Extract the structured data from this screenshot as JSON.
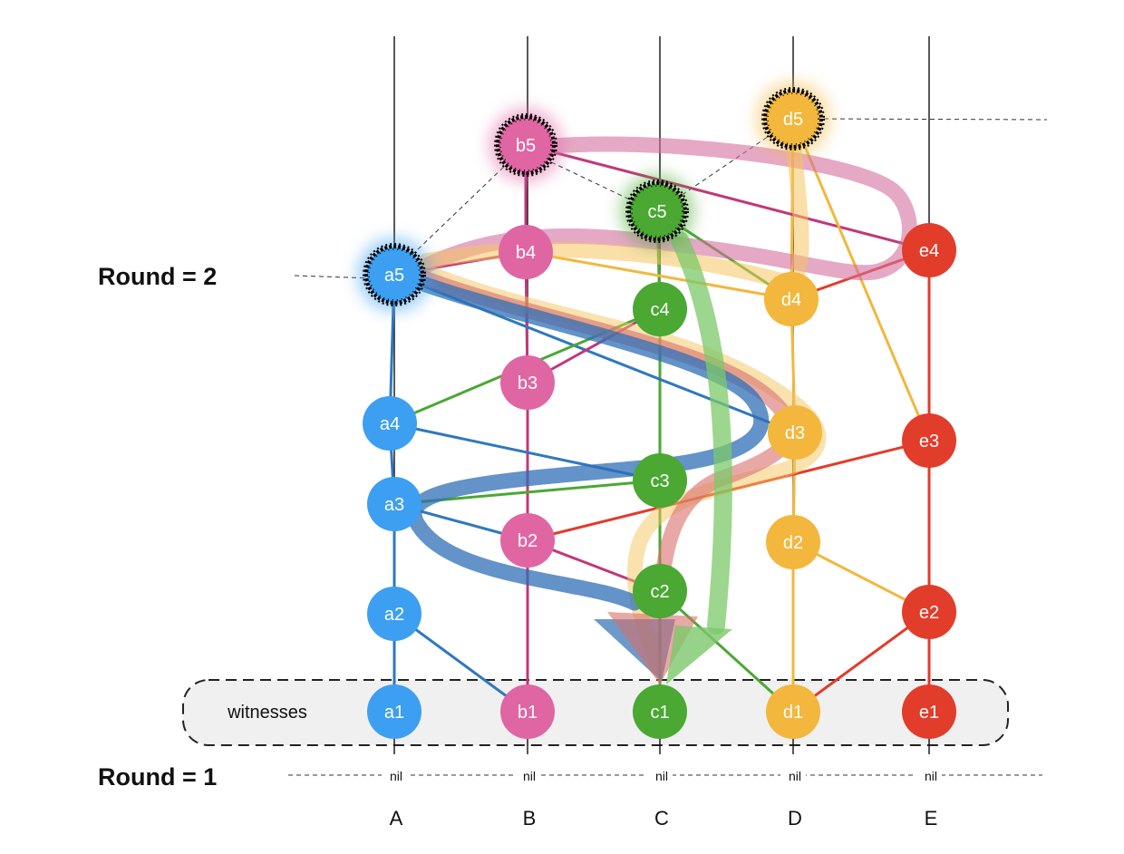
{
  "diagram": {
    "round_labels": {
      "top": "Round = 2",
      "bottom": "Round = 1"
    },
    "witnesses_label": "witnesses",
    "nil_label": "nil",
    "columns": [
      {
        "id": "A",
        "label": "A",
        "color": "#3d9ff1"
      },
      {
        "id": "B",
        "label": "B",
        "color": "#e066a3"
      },
      {
        "id": "C",
        "label": "C",
        "color": "#4aa833"
      },
      {
        "id": "D",
        "label": "D",
        "color": "#f2b73c"
      },
      {
        "id": "E",
        "label": "E",
        "color": "#e23c2b"
      }
    ],
    "nodes": [
      {
        "id": "a1",
        "label": "a1",
        "col": "A",
        "witness": true
      },
      {
        "id": "a2",
        "label": "a2",
        "col": "A"
      },
      {
        "id": "a3",
        "label": "a3",
        "col": "A"
      },
      {
        "id": "a4",
        "label": "a4",
        "col": "A"
      },
      {
        "id": "a5",
        "label": "a5",
        "col": "A",
        "famous": true
      },
      {
        "id": "b1",
        "label": "b1",
        "col": "B",
        "witness": true
      },
      {
        "id": "b2",
        "label": "b2",
        "col": "B"
      },
      {
        "id": "b3",
        "label": "b3",
        "col": "B"
      },
      {
        "id": "b4",
        "label": "b4",
        "col": "B"
      },
      {
        "id": "b5",
        "label": "b5",
        "col": "B",
        "famous": true
      },
      {
        "id": "c1",
        "label": "c1",
        "col": "C",
        "witness": true
      },
      {
        "id": "c2",
        "label": "c2",
        "col": "C"
      },
      {
        "id": "c3",
        "label": "c3",
        "col": "C"
      },
      {
        "id": "c4",
        "label": "c4",
        "col": "C"
      },
      {
        "id": "c5",
        "label": "c5",
        "col": "C",
        "famous": true
      },
      {
        "id": "d1",
        "label": "d1",
        "col": "D",
        "witness": true
      },
      {
        "id": "d2",
        "label": "d2",
        "col": "D"
      },
      {
        "id": "d3",
        "label": "d3",
        "col": "D"
      },
      {
        "id": "d4",
        "label": "d4",
        "col": "D"
      },
      {
        "id": "d5",
        "label": "d5",
        "col": "D",
        "famous": true
      },
      {
        "id": "e1",
        "label": "e1",
        "col": "E",
        "witness": true
      },
      {
        "id": "e2",
        "label": "e2",
        "col": "E"
      },
      {
        "id": "e3",
        "label": "e3",
        "col": "E"
      },
      {
        "id": "e4",
        "label": "e4",
        "col": "E"
      }
    ],
    "edges": [
      {
        "from": "a1",
        "to": "a2",
        "color": "#2f78c0"
      },
      {
        "from": "a2",
        "to": "a3",
        "color": "#2f78c0"
      },
      {
        "from": "a3",
        "to": "a4",
        "color": "#2f78c0"
      },
      {
        "from": "a4",
        "to": "a5",
        "color": "#2f78c0"
      },
      {
        "from": "b1",
        "to": "b2",
        "color": "#c0387a"
      },
      {
        "from": "b2",
        "to": "b3",
        "color": "#c0387a"
      },
      {
        "from": "b3",
        "to": "b4",
        "color": "#c0387a"
      },
      {
        "from": "b4",
        "to": "b5",
        "color": "#c0387a"
      },
      {
        "from": "c1",
        "to": "c2",
        "color": "#4aa833"
      },
      {
        "from": "c2",
        "to": "c3",
        "color": "#4aa833"
      },
      {
        "from": "c3",
        "to": "c4",
        "color": "#4aa833"
      },
      {
        "from": "c4",
        "to": "c5",
        "color": "#4aa833"
      },
      {
        "from": "d1",
        "to": "d2",
        "color": "#f2b73c"
      },
      {
        "from": "d2",
        "to": "d3",
        "color": "#f2b73c"
      },
      {
        "from": "d3",
        "to": "d4",
        "color": "#f2b73c"
      },
      {
        "from": "d4",
        "to": "d5",
        "color": "#f2b73c"
      },
      {
        "from": "e1",
        "to": "e2",
        "color": "#e23c2b"
      },
      {
        "from": "e2",
        "to": "e3",
        "color": "#e23c2b"
      },
      {
        "from": "e3",
        "to": "e4",
        "color": "#e23c2b"
      },
      {
        "from": "a2",
        "to": "b1",
        "color": "#2f78c0"
      },
      {
        "from": "a3",
        "to": "b2",
        "color": "#2f78c0"
      },
      {
        "from": "a4",
        "to": "c3",
        "color": "#2f78c0"
      },
      {
        "from": "a5",
        "to": "d3",
        "color": "#2f78c0"
      },
      {
        "from": "b2",
        "to": "c2",
        "color": "#c0387a"
      },
      {
        "from": "b3",
        "to": "c4",
        "color": "#c0387a"
      },
      {
        "from": "b4",
        "to": "a5",
        "color": "#c0387a"
      },
      {
        "from": "b5",
        "to": "e4",
        "color": "#c0387a"
      },
      {
        "from": "c2",
        "to": "d1",
        "color": "#4aa833"
      },
      {
        "from": "c3",
        "to": "a3",
        "color": "#4aa833"
      },
      {
        "from": "c4",
        "to": "a4",
        "color": "#4aa833"
      },
      {
        "from": "c5",
        "to": "d4",
        "color": "#4aa833"
      },
      {
        "from": "d2",
        "to": "e2",
        "color": "#f2b73c"
      },
      {
        "from": "d4",
        "to": "b4",
        "color": "#f2b73c"
      },
      {
        "from": "d5",
        "to": "e3",
        "color": "#f2b73c"
      },
      {
        "from": "e2",
        "to": "d1",
        "color": "#e23c2b"
      },
      {
        "from": "e3",
        "to": "b2",
        "color": "#e23c2b"
      },
      {
        "from": "e4",
        "to": "d4",
        "color": "#e23c2b"
      }
    ],
    "see_paths": [
      {
        "name": "pink",
        "color": "#d4709f"
      },
      {
        "name": "yellow",
        "color": "#f5c560"
      },
      {
        "name": "blue",
        "color": "#2f6fb5"
      },
      {
        "name": "green",
        "color": "#7cc86a"
      }
    ]
  }
}
